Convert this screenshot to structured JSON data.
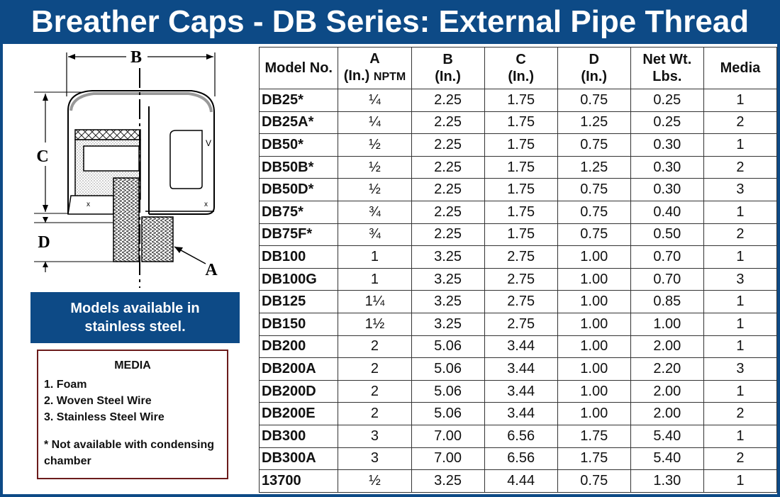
{
  "title": "Breather Caps - DB Series: External Pipe Thread",
  "diagram": {
    "label_b": "B",
    "label_c": "C",
    "label_d": "D",
    "label_a": "A",
    "mark_v": "V"
  },
  "stainless_note": {
    "line1": "Models available in",
    "line2": "stainless steel."
  },
  "media_box": {
    "title": "MEDIA",
    "items": [
      "1. Foam",
      "2. Woven Steel Wire",
      "3. Stainless Steel Wire"
    ],
    "note_line1": "* Not available with condensing",
    "note_line2": "chamber"
  },
  "table": {
    "headers": {
      "model": "Model No.",
      "a_line1": "A",
      "a_line2": "(In.)",
      "a_line2_small": "NPTM",
      "b_line1": "B",
      "b_line2": "(In.)",
      "c_line1": "C",
      "c_line2": "(In.)",
      "d_line1": "D",
      "d_line2": "(In.)",
      "wt_line1": "Net Wt.",
      "wt_line2": "Lbs.",
      "media": "Media"
    },
    "rows": [
      {
        "model": "DB25*",
        "a": "¼",
        "b": "2.25",
        "c": "1.75",
        "d": "0.75",
        "wt": "0.25",
        "media": "1"
      },
      {
        "model": "DB25A*",
        "a": "¼",
        "b": "2.25",
        "c": "1.75",
        "d": "1.25",
        "wt": "0.25",
        "media": "2"
      },
      {
        "model": "DB50*",
        "a": "½",
        "b": "2.25",
        "c": "1.75",
        "d": "0.75",
        "wt": "0.30",
        "media": "1"
      },
      {
        "model": "DB50B*",
        "a": "½",
        "b": "2.25",
        "c": "1.75",
        "d": "1.25",
        "wt": "0.30",
        "media": "2"
      },
      {
        "model": "DB50D*",
        "a": "½",
        "b": "2.25",
        "c": "1.75",
        "d": "0.75",
        "wt": "0.30",
        "media": "3"
      },
      {
        "model": "DB75*",
        "a": "¾",
        "b": "2.25",
        "c": "1.75",
        "d": "0.75",
        "wt": "0.40",
        "media": "1"
      },
      {
        "model": "DB75F*",
        "a": "¾",
        "b": "2.25",
        "c": "1.75",
        "d": "0.75",
        "wt": "0.50",
        "media": "2"
      },
      {
        "model": "DB100",
        "a": "1",
        "b": "3.25",
        "c": "2.75",
        "d": "1.00",
        "wt": "0.70",
        "media": "1"
      },
      {
        "model": "DB100G",
        "a": "1",
        "b": "3.25",
        "c": "2.75",
        "d": "1.00",
        "wt": "0.70",
        "media": "3"
      },
      {
        "model": "DB125",
        "a": "1¼",
        "b": "3.25",
        "c": "2.75",
        "d": "1.00",
        "wt": "0.85",
        "media": "1"
      },
      {
        "model": "DB150",
        "a": "1½",
        "b": "3.25",
        "c": "2.75",
        "d": "1.00",
        "wt": "1.00",
        "media": "1"
      },
      {
        "model": "DB200",
        "a": "2",
        "b": "5.06",
        "c": "3.44",
        "d": "1.00",
        "wt": "2.00",
        "media": "1"
      },
      {
        "model": "DB200A",
        "a": "2",
        "b": "5.06",
        "c": "3.44",
        "d": "1.00",
        "wt": "2.20",
        "media": "3"
      },
      {
        "model": "DB200D",
        "a": "2",
        "b": "5.06",
        "c": "3.44",
        "d": "1.00",
        "wt": "2.00",
        "media": "1"
      },
      {
        "model": "DB200E",
        "a": "2",
        "b": "5.06",
        "c": "3.44",
        "d": "1.00",
        "wt": "2.00",
        "media": "2"
      },
      {
        "model": "DB300",
        "a": "3",
        "b": "7.00",
        "c": "6.56",
        "d": "1.75",
        "wt": "5.40",
        "media": "1"
      },
      {
        "model": "DB300A",
        "a": "3",
        "b": "7.00",
        "c": "6.56",
        "d": "1.75",
        "wt": "5.40",
        "media": "2"
      },
      {
        "model": "13700",
        "a": "½",
        "b": "3.25",
        "c": "4.44",
        "d": "0.75",
        "wt": "1.30",
        "media": "1"
      }
    ]
  },
  "colors": {
    "brand_blue": "#0d4a86",
    "media_border": "#6b1b1b"
  }
}
